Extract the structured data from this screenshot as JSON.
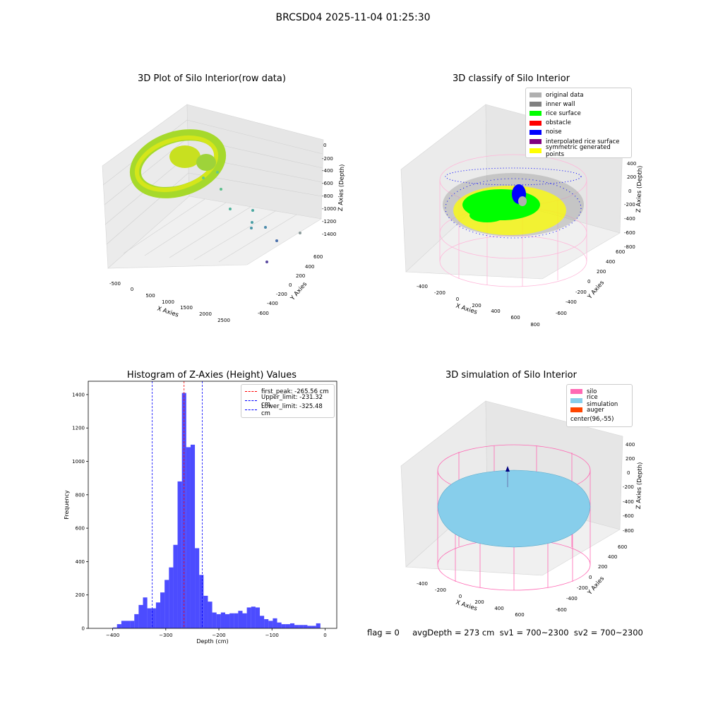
{
  "figure": {
    "title": "BRCSD04 2025-11-04 01:25:30",
    "status_line": "flag = 0     avgDepth = 273 cm  sv1 = 700~2300  sv2 = 700~2300"
  },
  "panels": {
    "raw": {
      "title": "3D Plot of Silo Interior(row data)",
      "xlabel": "X Axies",
      "ylabel": "Y Axies",
      "zlabel": "Z Axies (Depth)",
      "xticks": [
        "-500",
        "0",
        "500",
        "1000",
        "1500",
        "2000",
        "2500"
      ],
      "yticks": [
        "600",
        "400",
        "200",
        "0",
        "-200",
        "-400",
        "-600"
      ],
      "zticks": [
        "0",
        "-200",
        "-400",
        "-600",
        "-800",
        "-1000",
        "-1200",
        "-1400"
      ]
    },
    "classify": {
      "title": "3D classify of Silo Interior",
      "xlabel": "X Axies",
      "ylabel": "Y Axies",
      "zlabel": "Z Axies (Depth)",
      "xticks": [
        "-400",
        "-200",
        "0",
        "200",
        "400",
        "600",
        "800"
      ],
      "yticks": [
        "600",
        "400",
        "200",
        "0",
        "-200",
        "-400",
        "-600"
      ],
      "zticks": [
        "400",
        "200",
        "0",
        "-200",
        "-400",
        "-600",
        "-800"
      ],
      "legend": [
        {
          "label": "original data",
          "color": "#b0b0b0"
        },
        {
          "label": "inner wall",
          "color": "#808080"
        },
        {
          "label": "rice surface",
          "color": "#00ff00"
        },
        {
          "label": "obstacle",
          "color": "#ff0000"
        },
        {
          "label": "noise",
          "color": "#0000ff"
        },
        {
          "label": "interpolated rice surface",
          "color": "#800080"
        },
        {
          "label": "symmetric generated points",
          "color": "#ffff00"
        }
      ]
    },
    "simulation": {
      "title": "3D simulation of Silo Interior",
      "xlabel": "X Axies",
      "ylabel": "Y Axies",
      "zlabel": "Z Axies (Depth)",
      "xticks": [
        "-400",
        "-200",
        "0",
        "200",
        "400",
        "600"
      ],
      "yticks": [
        "600",
        "400",
        "200",
        "0",
        "-200",
        "-400",
        "-600"
      ],
      "zticks": [
        "400",
        "200",
        "0",
        "-200",
        "-400",
        "-600",
        "-800"
      ],
      "legend": [
        {
          "label": "silo",
          "color": "#ff69b4"
        },
        {
          "label": "rice simulation",
          "color": "#87ceeb"
        },
        {
          "label": "auger",
          "color": "#ff4500"
        },
        {
          "label": "center(96,-55)",
          "color": ""
        }
      ]
    }
  },
  "chart_data": {
    "type": "bar",
    "title": "Histogram of Z-Axies (Height) Values",
    "xlabel": "Depth (cm)",
    "ylabel": "Frequency",
    "xlim": [
      -446,
      22
    ],
    "ylim": [
      0,
      1480
    ],
    "xticks": [
      -400,
      -300,
      -200,
      -100,
      0
    ],
    "yticks": [
      0,
      200,
      400,
      600,
      800,
      1000,
      1200,
      1400
    ],
    "bar_color": "#0000ff",
    "bin_start": -400,
    "bin_width": 8.15,
    "values": [
      5,
      25,
      45,
      45,
      45,
      85,
      140,
      185,
      120,
      120,
      155,
      215,
      290,
      365,
      500,
      880,
      1410,
      1085,
      1100,
      480,
      320,
      195,
      160,
      95,
      85,
      95,
      85,
      90,
      90,
      105,
      90,
      125,
      130,
      125,
      75,
      55,
      45,
      60,
      35,
      25,
      25,
      30,
      20,
      20,
      20,
      15,
      15,
      30
    ],
    "vlines": [
      {
        "label": "first_peak: -265.56 cm",
        "x": -265.56,
        "color": "#ff0000"
      },
      {
        "label": "Upper_limit: -231.32 cm",
        "x": -231.32,
        "color": "#0000ff"
      },
      {
        "label": "Lower_limit: -325.48 cm",
        "x": -325.48,
        "color": "#0000ff"
      }
    ]
  }
}
